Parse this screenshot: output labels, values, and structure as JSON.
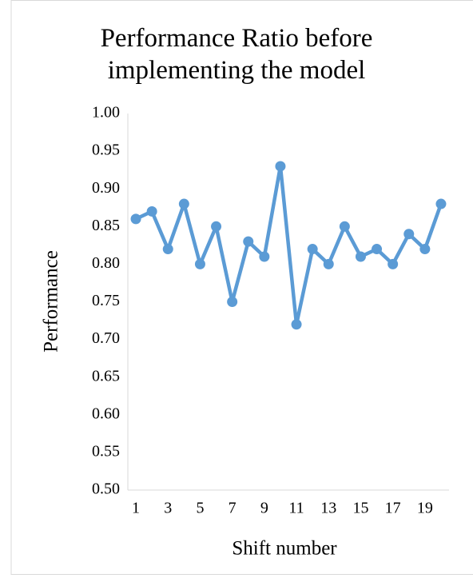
{
  "chart_data": {
    "type": "line",
    "title": "Performance Ratio before implementing the model",
    "x_label": "Shift number",
    "y_label": "Performance",
    "categories": [
      "1",
      null,
      "3",
      null,
      "5",
      null,
      "7",
      null,
      "9",
      null,
      "11",
      null,
      "13",
      null,
      "15",
      null,
      "17",
      null,
      "19",
      null
    ],
    "series": [
      {
        "name": "Performance",
        "color": "#5b9bd5",
        "values": [
          0.86,
          0.87,
          0.82,
          0.88,
          0.8,
          0.85,
          0.75,
          0.83,
          0.81,
          0.93,
          0.72,
          0.82,
          0.8,
          0.85,
          0.81,
          0.82,
          0.8,
          0.84,
          0.82,
          0.88
        ]
      }
    ],
    "ylim": [
      0.5,
      1.0
    ],
    "yticks": [
      {
        "value": 0.5,
        "label": "0.50"
      },
      {
        "value": 0.55,
        "label": "0.55"
      },
      {
        "value": 0.6,
        "label": "0.60"
      },
      {
        "value": 0.65,
        "label": "0.65"
      },
      {
        "value": 0.7,
        "label": "0.70"
      },
      {
        "value": 0.75,
        "label": "0.75"
      },
      {
        "value": 0.8,
        "label": "0.80"
      },
      {
        "value": 0.85,
        "label": "0.85"
      },
      {
        "value": 0.9,
        "label": "0.90"
      },
      {
        "value": 0.95,
        "label": "0.95"
      },
      {
        "value": 1.0,
        "label": "1.00"
      }
    ],
    "grid": false
  }
}
